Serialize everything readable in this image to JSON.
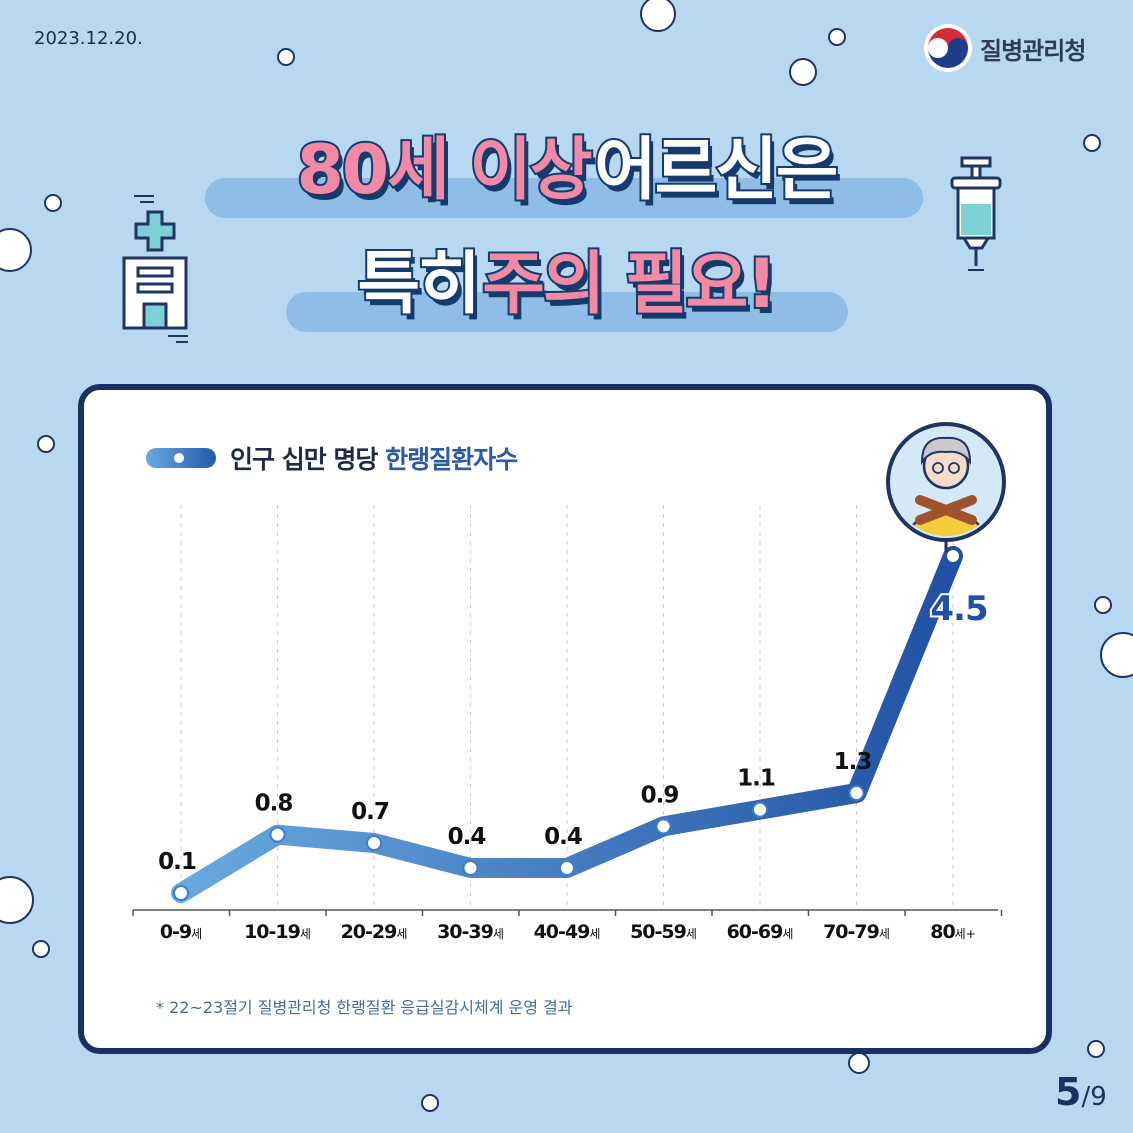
{
  "header": {
    "date": "2023.12.20.",
    "org_name": "질병관리청"
  },
  "title": {
    "line1_pink": "80세 이상",
    "line1_white": "어르신은",
    "line2_white": "특히",
    "line2_pink": "주의 필요!"
  },
  "legend": {
    "prefix": "인구 십만 명당",
    "highlight": "한랭질환자수"
  },
  "note": "* 22~23절기 질병관리청 한랭질환 응급실감시체계 운영 결과",
  "page": {
    "current": "5",
    "total": "/9"
  },
  "colors": {
    "line_start": "#6aa9e0",
    "line_end": "#2150a3",
    "card_border": "#17325e",
    "title_pink": "#f28aa6"
  },
  "chart_data": {
    "type": "line",
    "categories": [
      "0-9",
      "10-19",
      "20-29",
      "30-39",
      "40-49",
      "50-59",
      "60-69",
      "70-79",
      "80"
    ],
    "category_suffix": [
      "세",
      "세",
      "세",
      "세",
      "세",
      "세",
      "세",
      "세",
      "세+"
    ],
    "series": [
      {
        "values": [
          0.1,
          0.8,
          0.7,
          0.4,
          0.4,
          0.9,
          1.1,
          1.3,
          4.5
        ]
      }
    ],
    "value_labels": [
      "0.1",
      "0.8",
      "0.7",
      "0.4",
      "0.4",
      "0.9",
      "1.1",
      "1.3",
      "4.5"
    ],
    "ylim": [
      0,
      4.5
    ],
    "grid": "vertical-dashed"
  }
}
